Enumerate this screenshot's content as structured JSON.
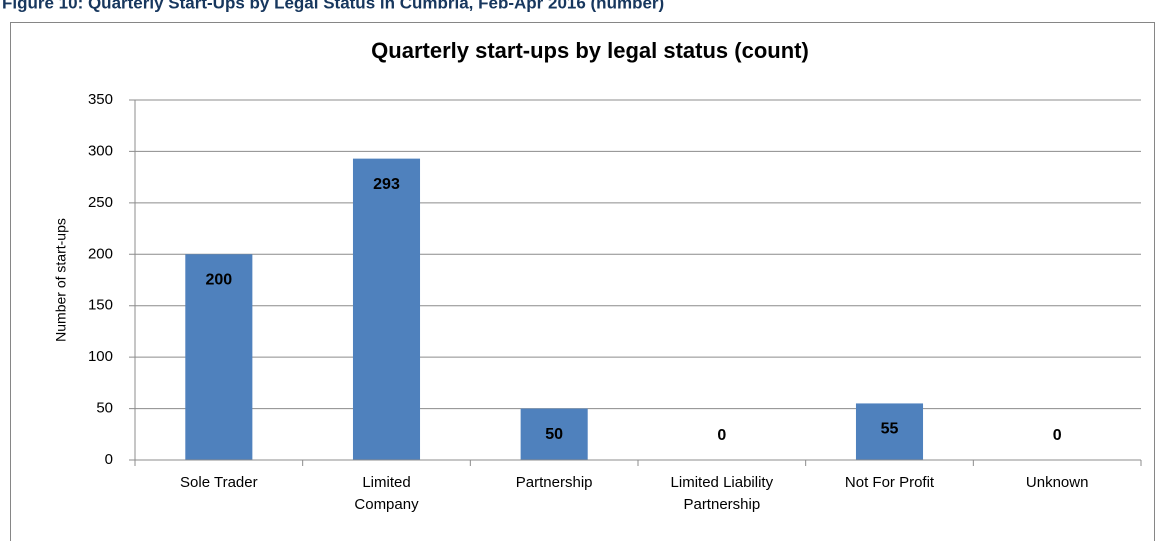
{
  "heading": "Figure 10: Quarterly Start-Ups by Legal Status in Cumbria, Feb-Apr 2016 (number)",
  "chart_data": {
    "type": "bar",
    "title": "Quarterly start-ups by legal status (count)",
    "ylabel": "Number of start-ups",
    "categories": [
      "Sole Trader",
      "Limited\nCompany",
      "Partnership",
      "Limited Liability\nPartnership",
      "Not For Profit",
      "Unknown"
    ],
    "values": [
      200,
      293,
      50,
      0,
      55,
      0
    ],
    "color": "#4f81bd",
    "ylim": [
      0,
      350
    ],
    "yticks": [
      0,
      50,
      100,
      150,
      200,
      250,
      300,
      350
    ],
    "grid": true
  }
}
